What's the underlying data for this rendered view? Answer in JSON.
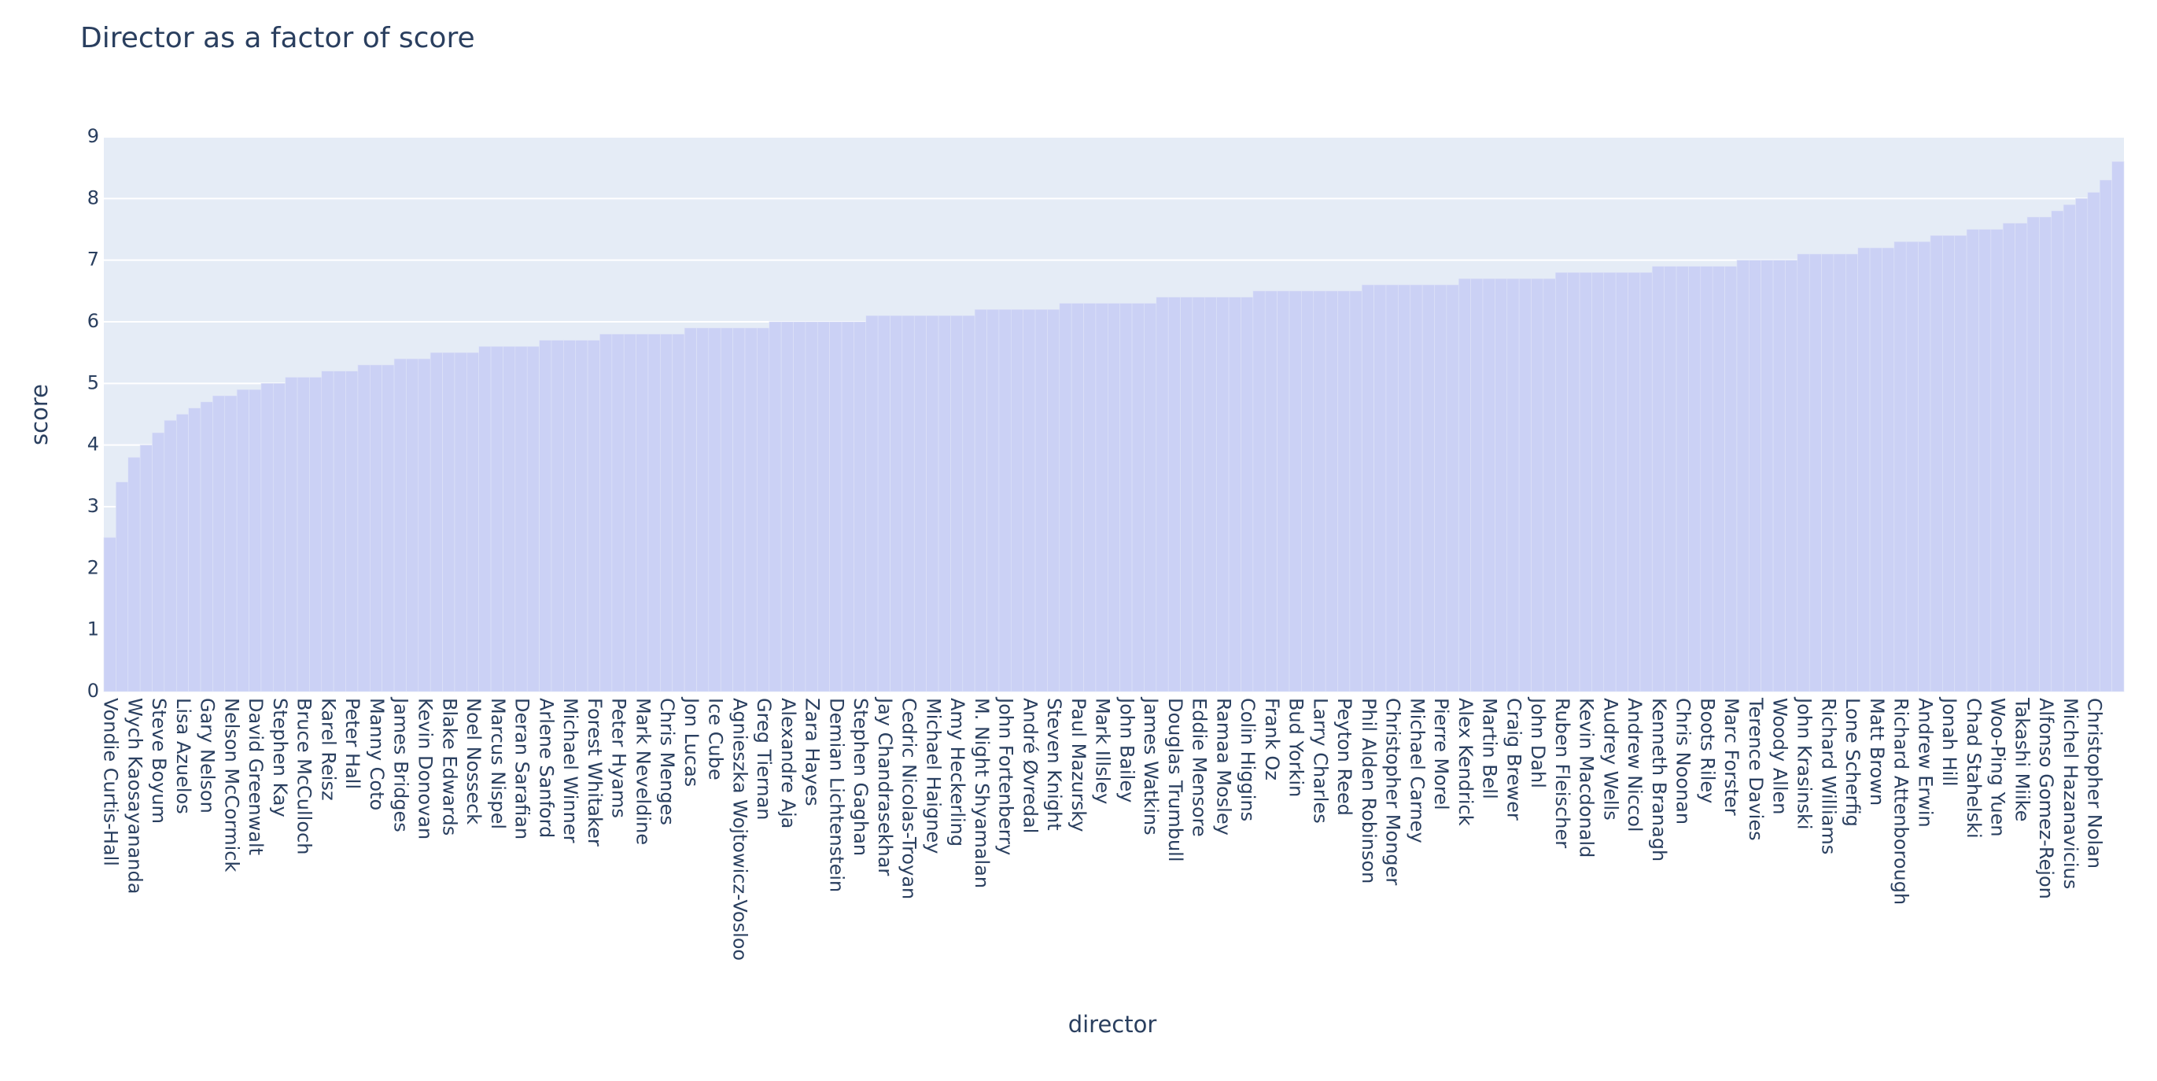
{
  "chart_data": {
    "type": "bar",
    "title": "Director as a factor of score",
    "x_label": "director",
    "y_label": "score",
    "color": "#cbd1f5",
    "background": "#e5ecf6",
    "grid": true,
    "ylim": [
      0,
      9
    ],
    "yticks": [
      0,
      1,
      2,
      3,
      4,
      5,
      6,
      7,
      8,
      9
    ],
    "categories": [
      "Vondie Curtis-Hall",
      null,
      "Wych Kaosayananda",
      null,
      "Steve Boyum",
      null,
      "Lisa Azuelos",
      null,
      "Gary Nelson",
      null,
      "Nelson McCormick",
      null,
      "David Greenwalt",
      null,
      "Stephen Kay",
      null,
      "Bruce McCulloch",
      null,
      "Karel Reisz",
      null,
      "Peter Hall",
      null,
      "Manny Coto",
      null,
      "James Bridges",
      null,
      "Kevin Donovan",
      null,
      "Blake Edwards",
      null,
      "Noel Nosseck",
      null,
      "Marcus Nispel",
      null,
      "Deran Sarafian",
      null,
      "Arlene Sanford",
      null,
      "Michael Winner",
      null,
      "Forest Whitaker",
      null,
      "Peter Hyams",
      null,
      "Mark Neveldine",
      null,
      "Chris Menges",
      null,
      "Jon Lucas",
      null,
      "Ice Cube",
      null,
      "Agnieszka Wojtowicz-Vosloo",
      null,
      "Greg Tiernan",
      null,
      "Alexandre Aja",
      null,
      "Zara Hayes",
      null,
      "Demian Lichtenstein",
      null,
      "Stephen Gaghan",
      null,
      "Jay Chandrasekhar",
      null,
      "Cedric Nicolas-Troyan",
      null,
      "Michael Haigney",
      null,
      "Amy Heckerling",
      null,
      "M. Night Shyamalan",
      null,
      "John Fortenberry",
      null,
      "André Øvredal",
      null,
      "Steven Knight",
      null,
      "Paul Mazursky",
      null,
      "Mark Illsley",
      null,
      "John Bailey",
      null,
      "James Watkins",
      null,
      "Douglas Trumbull",
      null,
      "Eddie Mensore",
      null,
      "Ramaa Mosley",
      null,
      "Colin Higgins",
      null,
      "Frank Oz",
      null,
      "Bud Yorkin",
      null,
      "Larry Charles",
      null,
      "Peyton Reed",
      null,
      "Phil Alden Robinson",
      null,
      "Christopher Monger",
      null,
      "Michael Carney",
      null,
      "Pierre Morel",
      null,
      "Alex Kendrick",
      null,
      "Martin Bell",
      null,
      "Craig Brewer",
      null,
      "John Dahl",
      null,
      "Ruben Fleischer",
      null,
      "Kevin Macdonald",
      null,
      "Audrey Wells",
      null,
      "Andrew Niccol",
      null,
      "Kenneth Branagh",
      null,
      "Chris Noonan",
      null,
      "Boots Riley",
      null,
      "Marc Forster",
      null,
      "Terence Davies",
      null,
      "Woody Allen",
      null,
      "John Krasinski",
      null,
      "Richard Williams",
      null,
      "Lone Scherfig",
      null,
      "Matt Brown",
      null,
      "Richard Attenborough",
      null,
      "Andrew Erwin",
      null,
      "Jonah Hill",
      null,
      "Chad Stahelski",
      null,
      "Woo-Ping Yuen",
      null,
      "Takashi Miike",
      null,
      "Alfonso Gomez-Rejon",
      null,
      "Michel Hazanavicius",
      null,
      "Christopher Nolan",
      null,
      null
    ],
    "values": [
      2.5,
      3.4,
      3.8,
      4.0,
      4.2,
      4.4,
      4.5,
      4.6,
      4.7,
      4.8,
      4.8,
      4.9,
      4.9,
      5.0,
      5.0,
      5.1,
      5.1,
      5.1,
      5.2,
      5.2,
      5.2,
      5.3,
      5.3,
      5.3,
      5.4,
      5.4,
      5.4,
      5.5,
      5.5,
      5.5,
      5.5,
      5.6,
      5.6,
      5.6,
      5.6,
      5.6,
      5.7,
      5.7,
      5.7,
      5.7,
      5.7,
      5.8,
      5.8,
      5.8,
      5.8,
      5.8,
      5.8,
      5.8,
      5.9,
      5.9,
      5.9,
      5.9,
      5.9,
      5.9,
      5.9,
      6.0,
      6.0,
      6.0,
      6.0,
      6.0,
      6.0,
      6.0,
      6.0,
      6.1,
      6.1,
      6.1,
      6.1,
      6.1,
      6.1,
      6.1,
      6.1,
      6.1,
      6.2,
      6.2,
      6.2,
      6.2,
      6.2,
      6.2,
      6.2,
      6.3,
      6.3,
      6.3,
      6.3,
      6.3,
      6.3,
      6.3,
      6.3,
      6.4,
      6.4,
      6.4,
      6.4,
      6.4,
      6.4,
      6.4,
      6.4,
      6.5,
      6.5,
      6.5,
      6.5,
      6.5,
      6.5,
      6.5,
      6.5,
      6.5,
      6.6,
      6.6,
      6.6,
      6.6,
      6.6,
      6.6,
      6.6,
      6.6,
      6.7,
      6.7,
      6.7,
      6.7,
      6.7,
      6.7,
      6.7,
      6.7,
      6.8,
      6.8,
      6.8,
      6.8,
      6.8,
      6.8,
      6.8,
      6.8,
      6.9,
      6.9,
      6.9,
      6.9,
      6.9,
      6.9,
      6.9,
      7.0,
      7.0,
      7.0,
      7.0,
      7.0,
      7.1,
      7.1,
      7.1,
      7.1,
      7.1,
      7.2,
      7.2,
      7.2,
      7.3,
      7.3,
      7.3,
      7.4,
      7.4,
      7.4,
      7.5,
      7.5,
      7.5,
      7.6,
      7.6,
      7.7,
      7.7,
      7.8,
      7.9,
      8.0,
      8.1,
      8.3,
      8.6
    ]
  }
}
